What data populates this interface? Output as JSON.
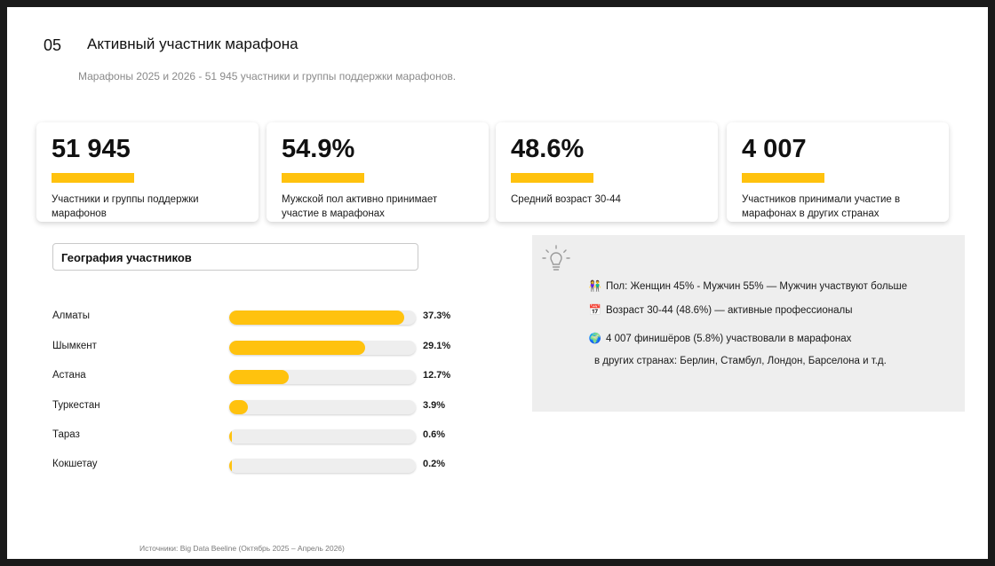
{
  "header": {
    "number": "05",
    "title": "Активный участник марафона",
    "subtitle": "Марафоны 2025 и 2026 -  51 945 участники и группы поддержки марафонов."
  },
  "kpis": [
    {
      "value": "51 945",
      "description": "Участники и группы поддержки марафонов"
    },
    {
      "value": "54.9%",
      "description": "Мужской пол активно принимает участие в марафонах"
    },
    {
      "value": "48.6%",
      "description": "Средний возраст 30-44"
    },
    {
      "value": "4 007",
      "description": "Участников принимали участие в марафонах в других странах"
    }
  ],
  "geography": {
    "title": "География участников",
    "rows": [
      {
        "city": "Алматы",
        "label": "37.3%",
        "fill": 0.94
      },
      {
        "city": "Шымкент",
        "label": "29.1%",
        "fill": 0.73
      },
      {
        "city": "Астана",
        "label": "12.7%",
        "fill": 0.32
      },
      {
        "city": "Туркестан",
        "label": "3.9%",
        "fill": 0.1
      },
      {
        "city": "Тараз",
        "label": "0.6%",
        "fill": 0.015
      },
      {
        "city": "Кокшетау",
        "label": "0.2%",
        "fill": 0.006
      }
    ]
  },
  "insights": {
    "icon": "lightbulb-icon",
    "lines": [
      {
        "icon": "people-icon",
        "glyph": "👫",
        "text": "Пол: Женщин 45% - Мужчин 55% — Мужчин участвуют больше"
      },
      {
        "icon": "calendar-icon",
        "glyph": "📅",
        "text": "Возраст 30-44 (48.6%) — активные профессионалы"
      },
      {
        "icon": "globe-icon",
        "glyph": "🌍",
        "text": "4 007 финишёров (5.8%) участвовали в марафонах"
      },
      {
        "icon": "",
        "glyph": "",
        "text": "в других странах:  Берлин, Стамбул, Лондон, Барселона и т.д."
      }
    ]
  },
  "footer": {
    "source": "Источники: Big Data Beeline (Октябрь 2025 – Апрель 2026)"
  },
  "colors": {
    "accent": "#FFC20E",
    "panel": "#EEEEEE"
  }
}
